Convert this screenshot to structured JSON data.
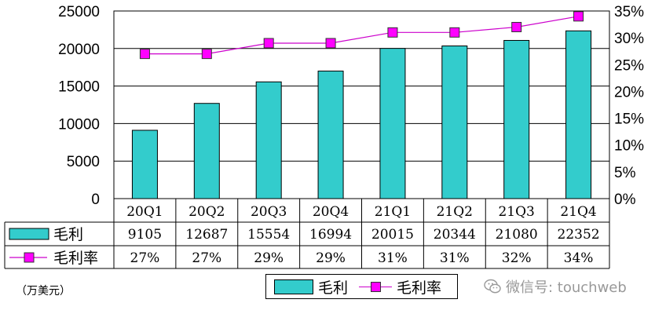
{
  "chart_data": {
    "type": "bar",
    "categories": [
      "20Q1",
      "20Q2",
      "20Q3",
      "20Q4",
      "21Q1",
      "21Q2",
      "21Q3",
      "21Q4"
    ],
    "series": [
      {
        "name": "毛利",
        "type": "bar",
        "axis": "left",
        "values": [
          9105,
          12687,
          15554,
          16994,
          20015,
          20344,
          21080,
          22352
        ],
        "color": "#33CCCC"
      },
      {
        "name": "毛利率",
        "type": "line",
        "axis": "right",
        "values": [
          27,
          27,
          29,
          29,
          31,
          31,
          32,
          34
        ],
        "color": "#FF00FF"
      }
    ],
    "table_rows": [
      {
        "label": "毛利",
        "cells": [
          "9105",
          "12687",
          "15554",
          "16994",
          "20015",
          "20344",
          "21080",
          "22352"
        ]
      },
      {
        "label": "毛利率",
        "cells": [
          "27%",
          "27%",
          "29%",
          "29%",
          "31%",
          "31%",
          "32%",
          "34%"
        ]
      }
    ],
    "y_left": {
      "ticks": [
        "0",
        "5000",
        "10000",
        "15000",
        "20000",
        "25000"
      ],
      "ylim": [
        0,
        25000
      ]
    },
    "y_right": {
      "ticks": [
        "0%",
        "5%",
        "10%",
        "15%",
        "20%",
        "25%",
        "30%",
        "35%"
      ],
      "ylim": [
        0,
        35
      ]
    },
    "grid": true,
    "legend_position": "bottom",
    "unit_label": "（万美元）"
  },
  "legend": {
    "bar_label": "毛利",
    "line_label": "毛利率"
  },
  "watermark": {
    "text": "微信号: touchweb",
    "icon": "wechat-icon"
  }
}
